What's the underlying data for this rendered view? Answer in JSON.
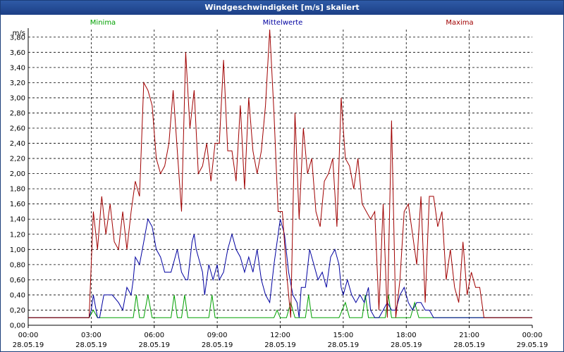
{
  "window": {
    "title": "Windgeschwindigkeit [m/s] skaliert"
  },
  "chart_data": {
    "type": "line",
    "title": "Windgeschwindigkeit [m/s] skaliert",
    "ylabel": "m/s",
    "ylim": [
      0,
      3.9
    ],
    "yticks": [
      "0,00",
      "0,20",
      "0,40",
      "0,60",
      "0,80",
      "1,00",
      "1,20",
      "1,40",
      "1,60",
      "1,80",
      "2,00",
      "2,20",
      "2,40",
      "2,60",
      "2,80",
      "3,00",
      "3,20",
      "3,40",
      "3,60",
      "3,80"
    ],
    "xlim": [
      0,
      24
    ],
    "xticks": [
      {
        "time": "00:00",
        "date": "28.05.19"
      },
      {
        "time": "03:00",
        "date": "28.05.19"
      },
      {
        "time": "06:00",
        "date": "28.05.19"
      },
      {
        "time": "09:00",
        "date": "28.05.19"
      },
      {
        "time": "12:00",
        "date": "28.05.19"
      },
      {
        "time": "15:00",
        "date": "28.05.19"
      },
      {
        "time": "18:00",
        "date": "28.05.19"
      },
      {
        "time": "21:00",
        "date": "28.05.19"
      },
      {
        "time": "00:00",
        "date": "29.05.19"
      }
    ],
    "grid": true,
    "legend_position": "top",
    "series": [
      {
        "name": "Minima",
        "color": "#00a000",
        "points": [
          [
            0,
            0.1
          ],
          [
            2.9,
            0.1
          ],
          [
            3.1,
            0.2
          ],
          [
            3.3,
            0.1
          ],
          [
            5.0,
            0.1
          ],
          [
            5.15,
            0.4
          ],
          [
            5.3,
            0.1
          ],
          [
            5.5,
            0.1
          ],
          [
            5.7,
            0.4
          ],
          [
            5.9,
            0.1
          ],
          [
            6.8,
            0.1
          ],
          [
            6.95,
            0.4
          ],
          [
            7.1,
            0.1
          ],
          [
            7.3,
            0.1
          ],
          [
            7.45,
            0.4
          ],
          [
            7.6,
            0.1
          ],
          [
            8.6,
            0.1
          ],
          [
            8.75,
            0.4
          ],
          [
            8.9,
            0.1
          ],
          [
            11.7,
            0.1
          ],
          [
            11.85,
            0.2
          ],
          [
            12.0,
            0.1
          ],
          [
            12.3,
            0.1
          ],
          [
            12.5,
            0.3
          ],
          [
            12.7,
            0.1
          ],
          [
            13.2,
            0.1
          ],
          [
            13.35,
            0.4
          ],
          [
            13.5,
            0.1
          ],
          [
            14.8,
            0.1
          ],
          [
            15.1,
            0.3
          ],
          [
            15.3,
            0.1
          ],
          [
            15.9,
            0.1
          ],
          [
            16.05,
            0.4
          ],
          [
            16.2,
            0.1
          ],
          [
            17.0,
            0.1
          ],
          [
            17.15,
            0.4
          ],
          [
            17.3,
            0.1
          ],
          [
            18.2,
            0.1
          ],
          [
            18.4,
            0.3
          ],
          [
            18.6,
            0.1
          ],
          [
            24,
            0.1
          ]
        ]
      },
      {
        "name": "Mittelwerte",
        "color": "#0000a0",
        "points": [
          [
            0,
            0.1
          ],
          [
            2.9,
            0.1
          ],
          [
            3.0,
            0.2
          ],
          [
            3.1,
            0.4
          ],
          [
            3.3,
            0.1
          ],
          [
            3.4,
            0.1
          ],
          [
            3.6,
            0.4
          ],
          [
            4.0,
            0.4
          ],
          [
            4.3,
            0.3
          ],
          [
            4.5,
            0.2
          ],
          [
            4.7,
            0.5
          ],
          [
            4.9,
            0.4
          ],
          [
            5.0,
            0.6
          ],
          [
            5.1,
            0.9
          ],
          [
            5.3,
            0.8
          ],
          [
            5.5,
            1.1
          ],
          [
            5.7,
            1.4
          ],
          [
            5.9,
            1.3
          ],
          [
            6.1,
            1.0
          ],
          [
            6.3,
            0.9
          ],
          [
            6.5,
            0.7
          ],
          [
            6.8,
            0.7
          ],
          [
            7.0,
            0.9
          ],
          [
            7.1,
            1.0
          ],
          [
            7.3,
            0.7
          ],
          [
            7.5,
            0.6
          ],
          [
            7.6,
            0.6
          ],
          [
            7.8,
            1.1
          ],
          [
            7.9,
            1.2
          ],
          [
            8.0,
            1.0
          ],
          [
            8.3,
            0.7
          ],
          [
            8.4,
            0.4
          ],
          [
            8.6,
            0.8
          ],
          [
            8.8,
            0.6
          ],
          [
            9.0,
            0.8
          ],
          [
            9.1,
            0.6
          ],
          [
            9.3,
            0.7
          ],
          [
            9.5,
            1.0
          ],
          [
            9.7,
            1.2
          ],
          [
            9.9,
            1.0
          ],
          [
            10.1,
            0.9
          ],
          [
            10.3,
            0.7
          ],
          [
            10.5,
            0.9
          ],
          [
            10.7,
            0.7
          ],
          [
            10.9,
            1.0
          ],
          [
            11.1,
            0.6
          ],
          [
            11.3,
            0.4
          ],
          [
            11.5,
            0.3
          ],
          [
            11.7,
            0.8
          ],
          [
            11.9,
            1.2
          ],
          [
            12.0,
            1.4
          ],
          [
            12.2,
            1.2
          ],
          [
            12.4,
            0.7
          ],
          [
            12.6,
            0.4
          ],
          [
            12.8,
            0.3
          ],
          [
            12.9,
            0.1
          ],
          [
            13.0,
            0.5
          ],
          [
            13.2,
            0.5
          ],
          [
            13.4,
            1.0
          ],
          [
            13.6,
            0.8
          ],
          [
            13.8,
            0.6
          ],
          [
            14.0,
            0.7
          ],
          [
            14.2,
            0.5
          ],
          [
            14.4,
            0.9
          ],
          [
            14.6,
            1.0
          ],
          [
            14.8,
            0.8
          ],
          [
            14.9,
            0.5
          ],
          [
            15.0,
            0.4
          ],
          [
            15.2,
            0.6
          ],
          [
            15.4,
            0.4
          ],
          [
            15.6,
            0.3
          ],
          [
            15.8,
            0.4
          ],
          [
            16.0,
            0.3
          ],
          [
            16.2,
            0.5
          ],
          [
            16.3,
            0.2
          ],
          [
            16.5,
            0.1
          ],
          [
            16.7,
            0.1
          ],
          [
            16.9,
            0.2
          ],
          [
            17.1,
            0.3
          ],
          [
            17.3,
            0.2
          ],
          [
            17.5,
            0.2
          ],
          [
            17.7,
            0.4
          ],
          [
            17.9,
            0.5
          ],
          [
            18.1,
            0.3
          ],
          [
            18.3,
            0.2
          ],
          [
            18.5,
            0.3
          ],
          [
            18.7,
            0.3
          ],
          [
            18.9,
            0.2
          ],
          [
            19.1,
            0.2
          ],
          [
            19.3,
            0.1
          ],
          [
            24,
            0.1
          ]
        ]
      },
      {
        "name": "Maxima",
        "color": "#a00000",
        "points": [
          [
            0,
            0.1
          ],
          [
            2.9,
            0.1
          ],
          [
            3.1,
            1.5
          ],
          [
            3.3,
            1.0
          ],
          [
            3.5,
            1.7
          ],
          [
            3.7,
            1.2
          ],
          [
            3.9,
            1.6
          ],
          [
            4.1,
            1.1
          ],
          [
            4.3,
            1.0
          ],
          [
            4.5,
            1.5
          ],
          [
            4.7,
            1.0
          ],
          [
            4.9,
            1.5
          ],
          [
            5.1,
            1.9
          ],
          [
            5.3,
            1.7
          ],
          [
            5.5,
            3.2
          ],
          [
            5.7,
            3.1
          ],
          [
            5.9,
            2.9
          ],
          [
            6.1,
            2.2
          ],
          [
            6.3,
            2.0
          ],
          [
            6.5,
            2.1
          ],
          [
            6.7,
            2.4
          ],
          [
            6.9,
            3.1
          ],
          [
            7.1,
            2.3
          ],
          [
            7.3,
            1.5
          ],
          [
            7.5,
            3.6
          ],
          [
            7.7,
            2.6
          ],
          [
            7.9,
            3.1
          ],
          [
            8.1,
            2.0
          ],
          [
            8.3,
            2.1
          ],
          [
            8.5,
            2.4
          ],
          [
            8.7,
            1.9
          ],
          [
            8.9,
            2.4
          ],
          [
            9.1,
            2.4
          ],
          [
            9.3,
            3.5
          ],
          [
            9.5,
            2.3
          ],
          [
            9.7,
            2.3
          ],
          [
            9.9,
            1.9
          ],
          [
            10.1,
            2.9
          ],
          [
            10.3,
            1.8
          ],
          [
            10.5,
            3.0
          ],
          [
            10.7,
            2.3
          ],
          [
            10.9,
            2.0
          ],
          [
            11.1,
            2.3
          ],
          [
            11.3,
            2.9
          ],
          [
            11.5,
            3.9
          ],
          [
            11.7,
            2.8
          ],
          [
            11.9,
            1.5
          ],
          [
            12.1,
            1.5
          ],
          [
            12.3,
            0.7
          ],
          [
            12.5,
            0.1
          ],
          [
            12.7,
            2.8
          ],
          [
            12.9,
            1.4
          ],
          [
            13.1,
            2.6
          ],
          [
            13.3,
            2.0
          ],
          [
            13.5,
            2.2
          ],
          [
            13.7,
            1.5
          ],
          [
            13.9,
            1.3
          ],
          [
            14.1,
            1.9
          ],
          [
            14.3,
            2.0
          ],
          [
            14.5,
            2.2
          ],
          [
            14.7,
            1.3
          ],
          [
            14.9,
            3.0
          ],
          [
            15.1,
            2.2
          ],
          [
            15.3,
            2.1
          ],
          [
            15.5,
            1.8
          ],
          [
            15.7,
            2.2
          ],
          [
            15.9,
            1.6
          ],
          [
            16.1,
            1.5
          ],
          [
            16.3,
            1.4
          ],
          [
            16.5,
            1.5
          ],
          [
            16.7,
            0.2
          ],
          [
            16.9,
            1.6
          ],
          [
            17.1,
            0.1
          ],
          [
            17.3,
            2.7
          ],
          [
            17.5,
            0.1
          ],
          [
            17.7,
            0.6
          ],
          [
            17.9,
            1.5
          ],
          [
            18.1,
            1.6
          ],
          [
            18.3,
            1.2
          ],
          [
            18.5,
            0.8
          ],
          [
            18.7,
            1.7
          ],
          [
            18.9,
            0.3
          ],
          [
            19.1,
            1.7
          ],
          [
            19.3,
            1.7
          ],
          [
            19.5,
            1.3
          ],
          [
            19.7,
            1.5
          ],
          [
            19.9,
            0.6
          ],
          [
            20.1,
            1.0
          ],
          [
            20.3,
            0.5
          ],
          [
            20.5,
            0.3
          ],
          [
            20.7,
            1.1
          ],
          [
            20.9,
            0.4
          ],
          [
            21.1,
            0.7
          ],
          [
            21.3,
            0.5
          ],
          [
            21.5,
            0.5
          ],
          [
            21.7,
            0.1
          ],
          [
            24,
            0.1
          ]
        ]
      }
    ]
  }
}
